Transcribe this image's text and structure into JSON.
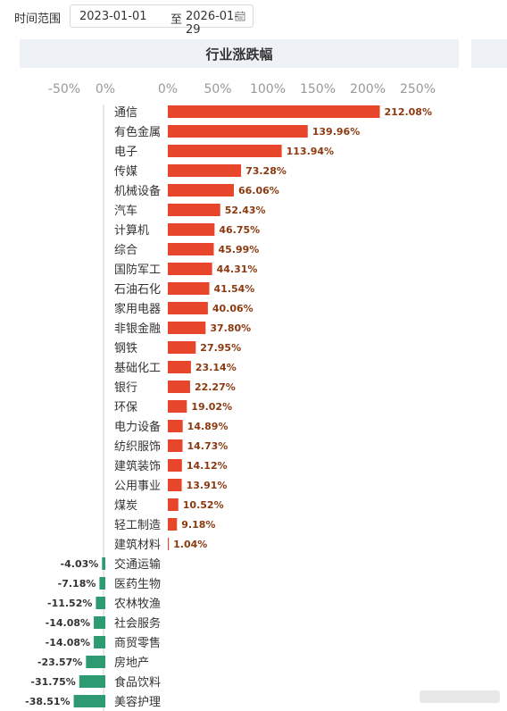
{
  "filter": {
    "label": "时间范围",
    "start": "2023-01-01",
    "separator": "至",
    "end": "2026-01-29"
  },
  "colors": {
    "positive": "#e8462a",
    "negative": "#2e9a72",
    "label_positive": "#8b3a10",
    "axis_text": "#999999",
    "category_text": "#333333"
  },
  "chart_data": {
    "type": "bar",
    "orientation": "horizontal",
    "title": "行业涨跌幅",
    "negative_axis_ticks": [
      "-50%",
      "0%"
    ],
    "positive_axis_ticks": [
      "0%",
      "50%",
      "100%",
      "150%",
      "200%",
      "250%"
    ],
    "xlim_negative": [
      -50,
      0
    ],
    "xlim_positive": [
      0,
      250
    ],
    "categories": [
      "通信",
      "有色金属",
      "电子",
      "传媒",
      "机械设备",
      "汽车",
      "计算机",
      "综合",
      "国防军工",
      "石油石化",
      "家用电器",
      "非银金融",
      "钢铁",
      "基础化工",
      "银行",
      "环保",
      "电力设备",
      "纺织服饰",
      "建筑装饰",
      "公用事业",
      "煤炭",
      "轻工制造",
      "建筑材料",
      "交通运输",
      "医药生物",
      "农林牧渔",
      "社会服务",
      "商贸零售",
      "房地产",
      "食品饮料",
      "美容护理"
    ],
    "values": [
      212.08,
      139.96,
      113.94,
      73.28,
      66.06,
      52.43,
      46.75,
      45.99,
      44.31,
      41.54,
      40.06,
      37.8,
      27.95,
      23.14,
      22.27,
      19.02,
      14.89,
      14.73,
      14.12,
      13.91,
      10.52,
      9.18,
      1.04,
      -4.03,
      -7.18,
      -11.52,
      -14.08,
      -14.08,
      -23.57,
      -31.75,
      -38.51
    ],
    "value_labels": [
      "212.08%",
      "139.96%",
      "113.94%",
      "73.28%",
      "66.06%",
      "52.43%",
      "46.75%",
      "45.99%",
      "44.31%",
      "41.54%",
      "40.06%",
      "37.80%",
      "27.95%",
      "23.14%",
      "22.27%",
      "19.02%",
      "14.89%",
      "14.73%",
      "14.12%",
      "13.91%",
      "10.52%",
      "9.18%",
      "1.04%",
      "-4.03%",
      "-7.18%",
      "-11.52%",
      "-14.08%",
      "-14.08%",
      "-23.57%",
      "-31.75%",
      "-38.51%"
    ],
    "grid": false,
    "legend": "none"
  }
}
